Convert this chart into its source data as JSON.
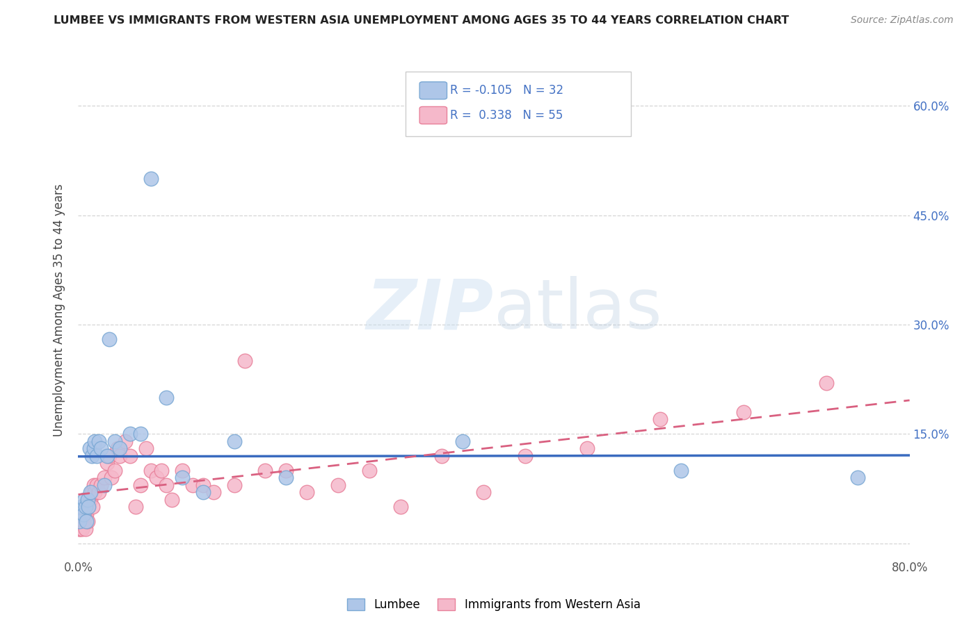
{
  "title": "LUMBEE VS IMMIGRANTS FROM WESTERN ASIA UNEMPLOYMENT AMONG AGES 35 TO 44 YEARS CORRELATION CHART",
  "source": "Source: ZipAtlas.com",
  "ylabel": "Unemployment Among Ages 35 to 44 years",
  "xlim": [
    0.0,
    0.8
  ],
  "ylim": [
    -0.02,
    0.66
  ],
  "xticks": [
    0.0,
    0.1,
    0.2,
    0.3,
    0.4,
    0.5,
    0.6,
    0.7,
    0.8
  ],
  "yticks": [
    0.0,
    0.15,
    0.3,
    0.45,
    0.6
  ],
  "ytick_labels_right": [
    "",
    "15.0%",
    "30.0%",
    "45.0%",
    "60.0%"
  ],
  "xtick_labels": [
    "0.0%",
    "",
    "",
    "",
    "",
    "",
    "",
    "",
    "80.0%"
  ],
  "lumbee_color": "#aec6e8",
  "lumbee_edge_color": "#7aa8d4",
  "immigrants_color": "#f5b8ca",
  "immigrants_edge_color": "#e8809a",
  "lumbee_R": -0.105,
  "lumbee_N": 32,
  "immigrants_R": 0.338,
  "immigrants_N": 55,
  "lumbee_line_color": "#3a6bbf",
  "immigrants_line_color": "#d96080",
  "watermark_zip": "ZIP",
  "watermark_atlas": "atlas",
  "lumbee_x": [
    0.001,
    0.003,
    0.005,
    0.006,
    0.007,
    0.008,
    0.009,
    0.01,
    0.011,
    0.012,
    0.013,
    0.015,
    0.016,
    0.018,
    0.02,
    0.022,
    0.025,
    0.028,
    0.03,
    0.035,
    0.04,
    0.05,
    0.06,
    0.07,
    0.085,
    0.1,
    0.12,
    0.15,
    0.2,
    0.37,
    0.58,
    0.75
  ],
  "lumbee_y": [
    0.03,
    0.05,
    0.04,
    0.06,
    0.05,
    0.03,
    0.06,
    0.05,
    0.13,
    0.07,
    0.12,
    0.13,
    0.14,
    0.12,
    0.14,
    0.13,
    0.08,
    0.12,
    0.28,
    0.14,
    0.13,
    0.15,
    0.15,
    0.5,
    0.2,
    0.09,
    0.07,
    0.14,
    0.09,
    0.14,
    0.1,
    0.09
  ],
  "immigrants_x": [
    0.001,
    0.002,
    0.003,
    0.004,
    0.005,
    0.006,
    0.007,
    0.008,
    0.009,
    0.01,
    0.011,
    0.012,
    0.013,
    0.014,
    0.015,
    0.016,
    0.018,
    0.02,
    0.022,
    0.025,
    0.028,
    0.03,
    0.032,
    0.035,
    0.038,
    0.04,
    0.045,
    0.05,
    0.055,
    0.06,
    0.065,
    0.07,
    0.075,
    0.08,
    0.085,
    0.09,
    0.1,
    0.11,
    0.12,
    0.13,
    0.15,
    0.16,
    0.18,
    0.2,
    0.22,
    0.25,
    0.28,
    0.31,
    0.35,
    0.39,
    0.43,
    0.49,
    0.56,
    0.64,
    0.72
  ],
  "immigrants_y": [
    0.02,
    0.02,
    0.03,
    0.02,
    0.03,
    0.04,
    0.02,
    0.04,
    0.03,
    0.05,
    0.06,
    0.06,
    0.07,
    0.05,
    0.08,
    0.07,
    0.08,
    0.07,
    0.08,
    0.09,
    0.11,
    0.12,
    0.09,
    0.1,
    0.13,
    0.12,
    0.14,
    0.12,
    0.05,
    0.08,
    0.13,
    0.1,
    0.09,
    0.1,
    0.08,
    0.06,
    0.1,
    0.08,
    0.08,
    0.07,
    0.08,
    0.25,
    0.1,
    0.1,
    0.07,
    0.08,
    0.1,
    0.05,
    0.12,
    0.07,
    0.12,
    0.13,
    0.17,
    0.18,
    0.22
  ]
}
